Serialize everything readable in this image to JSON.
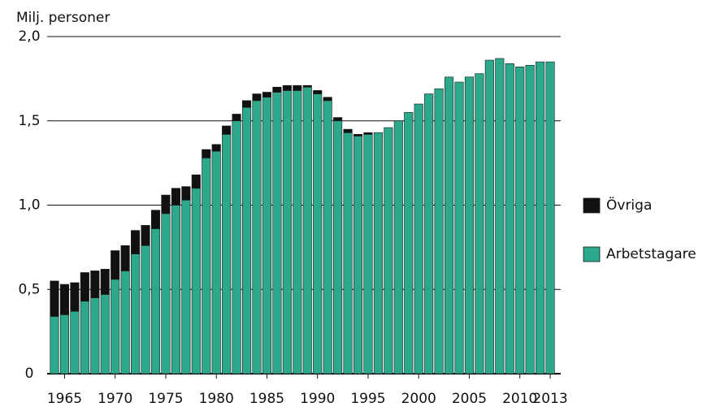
{
  "chart_data": {
    "type": "stacked_bar",
    "y_axis_label": "Milj. personer",
    "categories": [
      null,
      "1965",
      null,
      null,
      null,
      null,
      "1970",
      null,
      null,
      null,
      null,
      "1975",
      null,
      null,
      null,
      null,
      "1980",
      null,
      null,
      null,
      null,
      "1985",
      null,
      null,
      null,
      null,
      "1990",
      null,
      null,
      null,
      null,
      "1995",
      null,
      null,
      null,
      null,
      "2000",
      null,
      null,
      null,
      null,
      "2005",
      null,
      null,
      null,
      null,
      "2010",
      null,
      null,
      "2013"
    ],
    "series": [
      {
        "name": "Arbetstagare",
        "color": "#2ba98a",
        "values": [
          0.34,
          0.35,
          0.37,
          0.43,
          0.45,
          0.47,
          0.56,
          0.61,
          0.71,
          0.76,
          0.86,
          0.95,
          1.0,
          1.03,
          1.1,
          1.28,
          1.32,
          1.42,
          1.5,
          1.58,
          1.62,
          1.64,
          1.67,
          1.68,
          1.68,
          1.7,
          1.66,
          1.62,
          1.5,
          1.43,
          1.41,
          1.42,
          1.43,
          1.46,
          1.5,
          1.55,
          1.6,
          1.66,
          1.69,
          1.76,
          1.73,
          1.76,
          1.78,
          1.86,
          1.87,
          1.84,
          1.82,
          1.83,
          1.85,
          1.85
        ]
      },
      {
        "name": "Övriga",
        "color": "#111111",
        "values": [
          0.21,
          0.18,
          0.17,
          0.17,
          0.16,
          0.15,
          0.17,
          0.15,
          0.14,
          0.12,
          0.11,
          0.11,
          0.1,
          0.08,
          0.08,
          0.05,
          0.04,
          0.05,
          0.04,
          0.04,
          0.04,
          0.03,
          0.03,
          0.03,
          0.03,
          0.01,
          0.02,
          0.02,
          0.02,
          0.02,
          0.01,
          0.01,
          0,
          0,
          0,
          0,
          0,
          0,
          0,
          0,
          0,
          0,
          0,
          0,
          0,
          0,
          0,
          0,
          0,
          0
        ]
      }
    ],
    "ylim": [
      0,
      2
    ],
    "yticks": [
      0,
      {
        "value": 0.5,
        "label": "0,5"
      },
      {
        "value": 1,
        "label": "1,0"
      },
      {
        "value": 1.5,
        "label": "1,5"
      },
      {
        "value": 2,
        "label": "2,0"
      }
    ],
    "grid": true
  }
}
